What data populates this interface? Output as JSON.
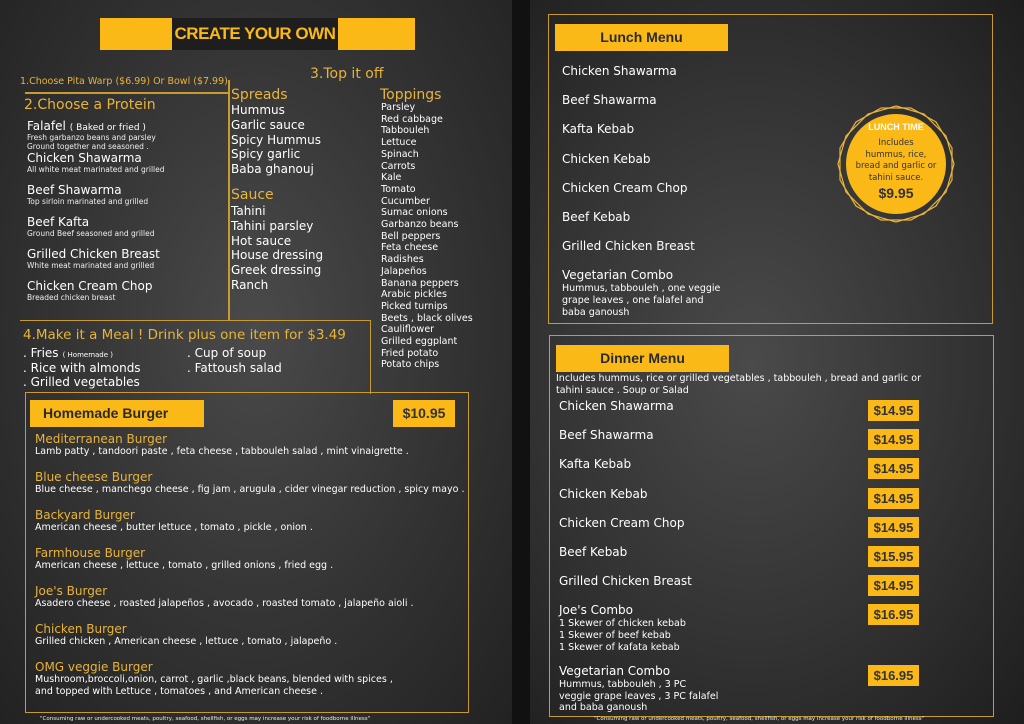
{
  "colors": {
    "accent": "#fbb917",
    "gold": "#e8b43a",
    "background": "#333333"
  },
  "left": {
    "title": "CREATE YOUR OWN",
    "step1": "1.Choose Pita Warp ($6.99) Or Bowl ($7.99)",
    "step2": "2.Choose a Protein",
    "proteins": [
      {
        "name": "Falafel",
        "note": "( Baked or fried )",
        "desc": [
          "Fresh garbanzo beans and parsley",
          "Ground together and seasoned ."
        ]
      },
      {
        "name": "Chicken Shawarma",
        "desc": [
          "All white meat marinated and grilled"
        ]
      },
      {
        "name": "Beef Shawarma",
        "desc": [
          "Top sirloin marinated and grilled"
        ]
      },
      {
        "name": "Beef Kafta",
        "desc": [
          "Ground Beef  seasoned and grilled"
        ]
      },
      {
        "name": "Grilled Chicken Breast",
        "desc": [
          "White meat marinated and grilled"
        ]
      },
      {
        "name": "Chicken Cream Chop",
        "desc": [
          "Breaded chicken breast"
        ]
      }
    ],
    "step3": "3.Top it off",
    "spreads_title": "Spreads",
    "spreads": [
      "Hummus",
      "Garlic sauce",
      "Spicy  Hummus",
      "Spicy garlic",
      "Baba ghanouj"
    ],
    "sauce_title": "Sauce",
    "sauces": [
      "Tahini",
      "Tahini parsley",
      "Hot sauce",
      "House dressing",
      "Greek dressing",
      "Ranch"
    ],
    "toppings_title": "Toppings",
    "toppings": [
      "Parsley",
      "Red cabbage",
      "Tabbouleh",
      "Lettuce",
      "Spinach",
      "Carrots",
      "Kale",
      "Tomato",
      "Cucumber",
      "Sumac onions",
      "Garbanzo beans",
      "Bell peppers",
      "Feta cheese",
      "Radishes",
      "Jalapeños",
      "Banana peppers",
      "Arabic pickles",
      "Picked turnips",
      "Beets , black olives",
      "Cauliflower",
      "Grilled eggplant",
      "Fried potato",
      "Potato chips"
    ],
    "step4": "4.Make it a Meal ! Drink plus one item for $3.49",
    "meal_items_col1": [
      ". Fries",
      ". Rice with almonds",
      ". Grilled vegetables"
    ],
    "fries_note": "( Homemade )",
    "meal_items_col2": [
      ". Cup of soup",
      ". Fattoush salad"
    ],
    "burger": {
      "title": "Homemade Burger",
      "price": "$10.95",
      "items": [
        {
          "name": "Mediterranean Burger",
          "desc": [
            "Lamb patty , tandoori paste , feta cheese , tabbouleh salad , mint vinaigrette  ."
          ]
        },
        {
          "name": "Blue cheese Burger",
          "desc": [
            "Blue cheese , manchego cheese , fig jam , arugula , cider vinegar  reduction , spicy mayo ."
          ]
        },
        {
          "name": "Backyard Burger",
          "desc": [
            "American cheese , butter lettuce , tomato , pickle , onion ."
          ]
        },
        {
          "name": "Farmhouse Burger",
          "desc": [
            "American cheese , lettuce , tomato ,  grilled onions  , fried egg ."
          ]
        },
        {
          "name": "Joe's Burger",
          "desc": [
            "Asadero cheese , roasted jalapeños , avocado , roasted tomato , jalapeño aioli ."
          ]
        },
        {
          "name": "Chicken Burger",
          "desc": [
            "Grilled chicken , American cheese , lettuce , tomato , jalapeño ."
          ]
        },
        {
          "name": "OMG veggie Burger",
          "desc": [
            "Mushroom,broccoli,onion, carrot , garlic ,black beans, blended with spices ,",
            "and topped with Lettuce , tomatoes , and American cheese ."
          ]
        }
      ]
    },
    "footnote": "\"Consuming raw or undercooked meats, poultry, seafood, shellfish, or eggs may increase your risk of foodborne illness\""
  },
  "right": {
    "lunch": {
      "title": "Lunch Menu",
      "items": [
        {
          "name": "Chicken Shawarma"
        },
        {
          "name": "Beef Shawarma"
        },
        {
          "name": "Kafta Kebab"
        },
        {
          "name": "Chicken Kebab"
        },
        {
          "name": "Chicken Cream Chop"
        },
        {
          "name": "Beef Kebab"
        },
        {
          "name": "Grilled Chicken Breast"
        },
        {
          "name": "Vegetarian Combo",
          "desc": [
            "Hummus, tabbouleh ,  one veggie",
            "grape leaves ,  one falafel and",
            "baba ganoush"
          ]
        }
      ],
      "badge": {
        "title": "LUNCH TIME",
        "lines": [
          "Includes",
          "hummus, rice,",
          "bread and garlic or",
          "tahini sauce."
        ],
        "price": "$9.95"
      }
    },
    "dinner": {
      "title": "Dinner Menu",
      "intro": [
        "Includes hummus, rice or grilled vegetables ,  tabbouleh , bread and garlic or",
        "tahini sauce .  Soup or Salad"
      ],
      "items": [
        {
          "name": "Chicken  Shawarma",
          "price": "$14.95"
        },
        {
          "name": "Beef Shawarma",
          "price": "$14.95"
        },
        {
          "name": "Kafta Kebab",
          "price": "$14.95"
        },
        {
          "name": "Chicken Kebab",
          "price": "$14.95"
        },
        {
          "name": "Chicken Cream Chop",
          "price": "$14.95"
        },
        {
          "name": "Beef Kebab",
          "price": "$15.95"
        },
        {
          "name": "Grilled Chicken Breast",
          "price": "$14.95"
        },
        {
          "name": "Joe's Combo",
          "price": "$16.95",
          "desc": [
            "1 Skewer of chicken kebab",
            "1 Skewer of beef kebab",
            "1 Skewer of kafata kebab"
          ]
        },
        {
          "name": "Vegetarian Combo",
          "price": "$16.95",
          "desc": [
            "Hummus, tabbouleh ,  3 PC",
            "veggie grape leaves , 3 PC falafel",
            "and baba ganoush"
          ]
        }
      ]
    },
    "footnote": "\"Consuming raw or undercooked meats, poultry, seafood, shellfish, or eggs may increase your risk of foodborne illness\""
  }
}
